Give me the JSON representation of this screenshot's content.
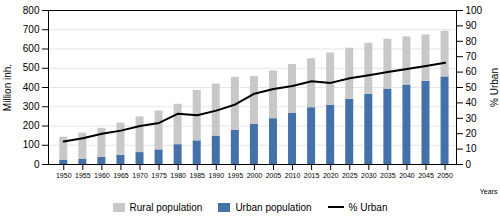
{
  "chart_data": {
    "type": "bar",
    "stacked": true,
    "x": [
      1950,
      1955,
      1960,
      1965,
      1970,
      1975,
      1980,
      1985,
      1990,
      1995,
      2000,
      2005,
      2010,
      2015,
      2020,
      2025,
      2030,
      2035,
      2040,
      2045,
      2050
    ],
    "xlim": [
      1946,
      2053
    ],
    "xticks": [
      1950,
      1955,
      1960,
      1965,
      1970,
      1975,
      1980,
      1985,
      1990,
      1995,
      2000,
      2005,
      2010,
      2015,
      2020,
      2025,
      2030,
      2035,
      2040,
      2045,
      2050
    ],
    "xlabel": "Years",
    "ylabel": "Million inh.",
    "y2label": "% Urban",
    "ylim": [
      0,
      800
    ],
    "yticks": [
      0,
      100,
      200,
      300,
      400,
      500,
      600,
      700,
      800
    ],
    "y2lim": [
      0,
      100
    ],
    "y2ticks": [
      0,
      10,
      20,
      30,
      40,
      50,
      60,
      70,
      80,
      90,
      100
    ],
    "grid": true,
    "legend": "bottom",
    "series": [
      {
        "name": "Rural population",
        "color": "#c8c8c8",
        "values": [
          120,
          135,
          150,
          167,
          185,
          202,
          210,
          262,
          270,
          276,
          249,
          248,
          254,
          254,
          271,
          266,
          265,
          258,
          250,
          241,
          237
        ]
      },
      {
        "name": "Urban population",
        "color": "#4472a8",
        "values": [
          22,
          28,
          38,
          48,
          62,
          76,
          103,
          123,
          148,
          177,
          208,
          238,
          265,
          295,
          308,
          338,
          365,
          392,
          413,
          432,
          455
        ]
      },
      {
        "name": "% Urban",
        "type": "line",
        "axis": "y2",
        "color": "#000000",
        "values": [
          15,
          17,
          20,
          22,
          25,
          27,
          33,
          32,
          35,
          39,
          46,
          49,
          51,
          54,
          53,
          56,
          58,
          60,
          62,
          64,
          66
        ]
      }
    ]
  }
}
